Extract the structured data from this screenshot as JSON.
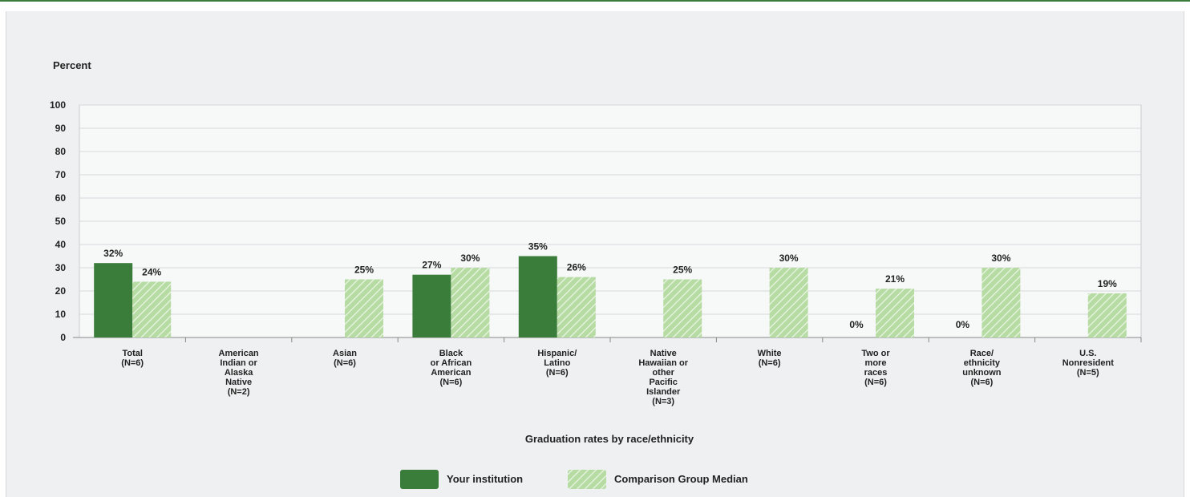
{
  "chart_data": {
    "type": "bar",
    "ylabel": "Percent",
    "xlabel": "Graduation rates by race/ethnicity",
    "ylim": [
      0,
      100
    ],
    "yticks": [
      0,
      10,
      20,
      30,
      40,
      50,
      60,
      70,
      80,
      90,
      100
    ],
    "grid": true,
    "legend_position": "bottom",
    "categories": [
      [
        "Total",
        "(N=6)"
      ],
      [
        "American",
        "Indian or",
        "Alaska",
        "Native",
        "(N=2)"
      ],
      [
        "Asian",
        "(N=6)"
      ],
      [
        "Black",
        "or African",
        "American",
        "(N=6)"
      ],
      [
        "Hispanic/",
        "Latino",
        "(N=6)"
      ],
      [
        "Native",
        "Hawaiian or",
        "other",
        "Pacific",
        "Islander",
        "(N=3)"
      ],
      [
        "White",
        "(N=6)"
      ],
      [
        "Two or",
        "more",
        "races",
        "(N=6)"
      ],
      [
        "Race/",
        "ethnicity",
        "unknown",
        "(N=6)"
      ],
      [
        "U.S.",
        "Nonresident",
        "(N=5)"
      ]
    ],
    "series": [
      {
        "name": "Your institution",
        "color": "#3a7d3a",
        "values": [
          32,
          null,
          null,
          27,
          35,
          null,
          null,
          0,
          0,
          null
        ],
        "labels": [
          "32%",
          "",
          "",
          "27%",
          "35%",
          "",
          "",
          "0%",
          "0%",
          ""
        ]
      },
      {
        "name": "Comparison Group Median",
        "color": "#b6dca4",
        "pattern": "diagonal-hatch",
        "values": [
          24,
          null,
          25,
          30,
          26,
          25,
          30,
          21,
          30,
          19
        ],
        "labels": [
          "24%",
          "",
          "25%",
          "30%",
          "26%",
          "25%",
          "30%",
          "21%",
          "30%",
          "19%"
        ]
      }
    ]
  }
}
